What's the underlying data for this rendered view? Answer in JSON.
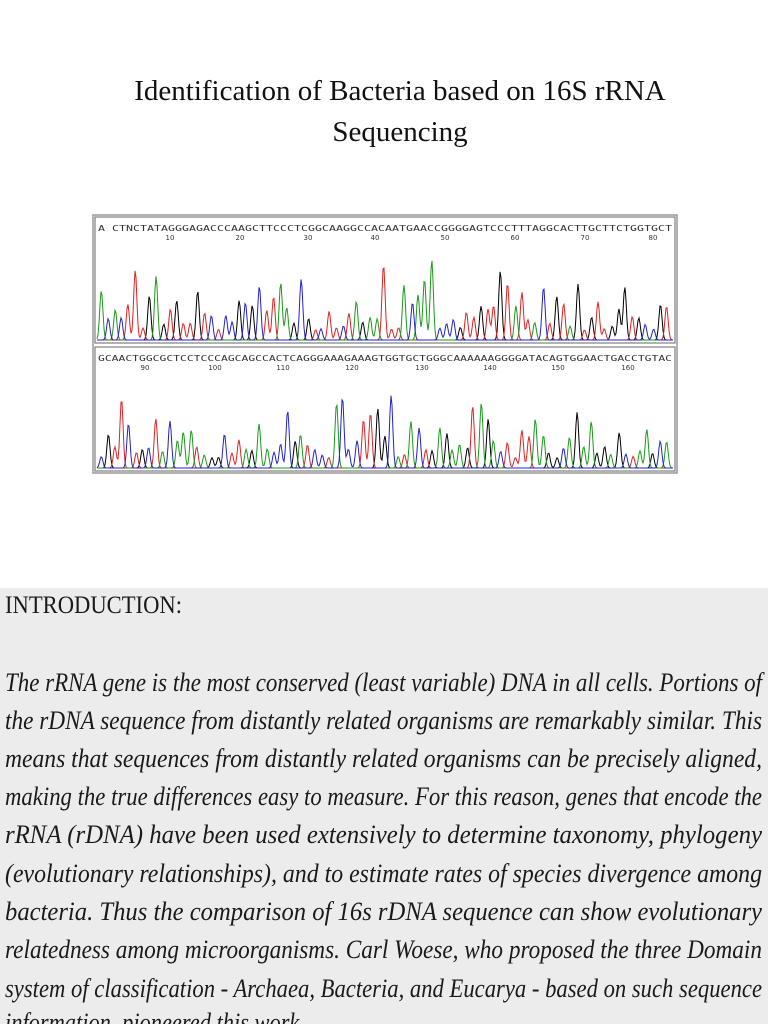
{
  "title": {
    "line1": "Identification of Bacteria based on 16S rRNA",
    "line2": "Sequencing"
  },
  "chromatogram": {
    "panels": [
      {
        "sequence": "A CTNCTATAGGGAGACCCAAGCTTCCCTCGGCAAGGCCACAATGAACCGGGGAGTCCCTTTAGGCACTTGCTTCTGGTGCT",
        "positions": [
          "10",
          "20",
          "30",
          "40",
          "50",
          "60",
          "70",
          "80"
        ]
      },
      {
        "sequence": "GCAACTGGCGCTCCTCCCAGCAGCCACTCAGGGAAAGAAAGTGGTGCTGGGCAAAAAAGGGGATACAGTGGAACTGACCTGTAC",
        "positions": [
          "90",
          "100",
          "110",
          "120",
          "130",
          "140",
          "150",
          "160"
        ]
      }
    ]
  },
  "introduction": {
    "heading": "INTRODUCTION:",
    "lines": [
      "The rRNA gene is the most conserved (least variable) DNA in all cells. Portions of",
      "the rDNA sequence from distantly related organisms are remarkably similar. This",
      "means that sequences from distantly related organisms can be precisely aligned,",
      "making the true differences easy to measure. For this reason, genes that encode the",
      "rRNA (rDNA) have been used extensively to determine taxonomy, phylogeny",
      "(evolutionary relationships), and to estimate rates of species divergence among",
      "bacteria. Thus the comparison of 16s rDNA sequence can show evolutionary",
      "relatedness among microorganisms. Carl Woese, who proposed the three Domain",
      "system of classification - Archaea, Bacteria, and Eucarya - based on such sequence",
      "information, pioneered this work."
    ]
  }
}
